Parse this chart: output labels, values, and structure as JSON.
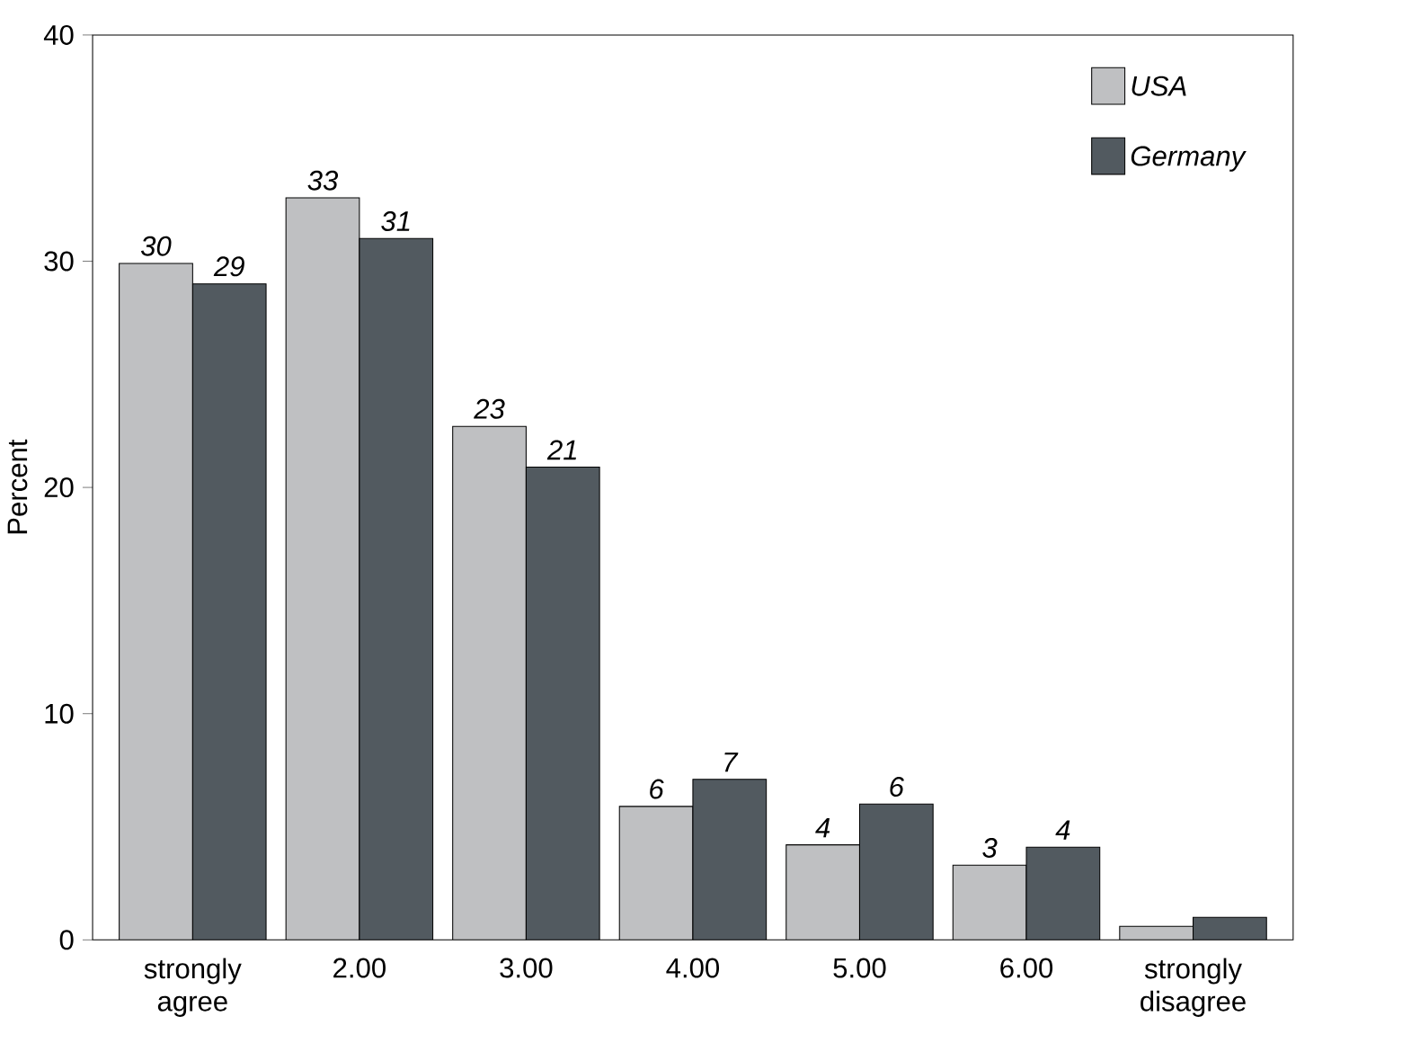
{
  "chart_data": {
    "type": "bar",
    "ylabel": "Percent",
    "categories": [
      "strongly agree",
      "2.00",
      "3.00",
      "4.00",
      "5.00",
      "6.00",
      "strongly disagree"
    ],
    "series": [
      {
        "name": "USA",
        "color": "#bfc0c2",
        "values": [
          29.9,
          32.8,
          22.7,
          5.9,
          4.2,
          3.3,
          0.6
        ],
        "value_labels": [
          "30",
          "33",
          "23",
          "6",
          "4",
          "3",
          null
        ]
      },
      {
        "name": "Germany",
        "color": "#525a60",
        "values": [
          29.0,
          31.0,
          20.9,
          7.1,
          6.0,
          4.1,
          1.0
        ],
        "value_labels": [
          "29",
          "31",
          "21",
          "7",
          "6",
          "4",
          null
        ]
      }
    ],
    "ylim": [
      0,
      40
    ],
    "yticks": [
      0,
      10,
      20,
      30,
      40
    ],
    "grid": false,
    "legend": "top right"
  }
}
